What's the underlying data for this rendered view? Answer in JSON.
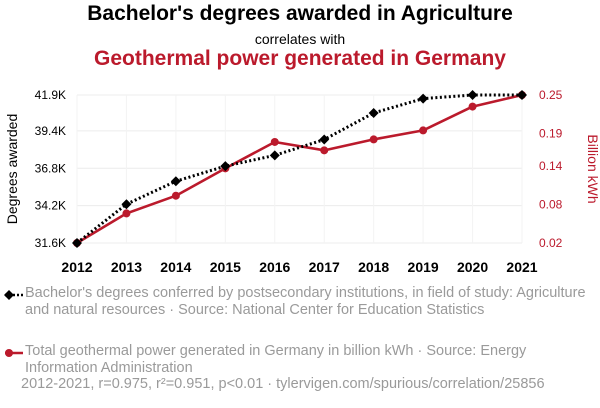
{
  "header": {
    "title": "Bachelor's degrees awarded in Agriculture",
    "subtitle": "correlates with",
    "title2": "Geothermal power generated in Germany"
  },
  "chart_data": {
    "type": "line",
    "x": [
      2012,
      2013,
      2014,
      2015,
      2016,
      2017,
      2018,
      2019,
      2020,
      2021
    ],
    "series": [
      {
        "name": "Bachelor's degrees awarded in Agriculture",
        "axis": "left",
        "color": "#000000",
        "marker": "diamond",
        "line_style": "dotted",
        "values": [
          31600,
          34300,
          35900,
          36950,
          37700,
          38800,
          40650,
          41650,
          41900,
          41900
        ]
      },
      {
        "name": "Geothermal power generated in Germany",
        "axis": "right",
        "color": "#bb1a2c",
        "marker": "circle",
        "line_style": "solid",
        "values": [
          0.02,
          0.066,
          0.0935,
          0.136,
          0.177,
          0.164,
          0.181,
          0.195,
          0.232,
          0.25
        ]
      }
    ],
    "y_left": {
      "label": "Degrees awarded",
      "ticks": [
        31600,
        34200,
        36800,
        39400,
        41900
      ],
      "tick_labels": [
        "31.6K",
        "34.2K",
        "36.8K",
        "39.4K",
        "41.9K"
      ],
      "range": [
        31600,
        41900
      ]
    },
    "y_right": {
      "label": "Billion kWh",
      "ticks": [
        0.02,
        0.08,
        0.14,
        0.19,
        0.25
      ],
      "tick_labels": [
        "0.02",
        "0.08",
        "0.14",
        "0.19",
        "0.25"
      ],
      "range": [
        0.02,
        0.25
      ]
    },
    "x_tick_labels": [
      "2012",
      "2013",
      "2014",
      "2015",
      "2016",
      "2017",
      "2018",
      "2019",
      "2020",
      "2021"
    ],
    "grid": true
  },
  "legend": {
    "items": [
      {
        "text": "Bachelor's degrees conferred by postsecondary institutions, in field of study: Agriculture and natural resources · Source: National Center for Education Statistics"
      },
      {
        "text": "Total geothermal power generated in Germany in billion kWh · Source: Energy Information Administration"
      }
    ]
  },
  "footer": {
    "text": "2012-2021, r=0.975, r²=0.951, p<0.01 · tylervigen.com/spurious/correlation/25856"
  }
}
